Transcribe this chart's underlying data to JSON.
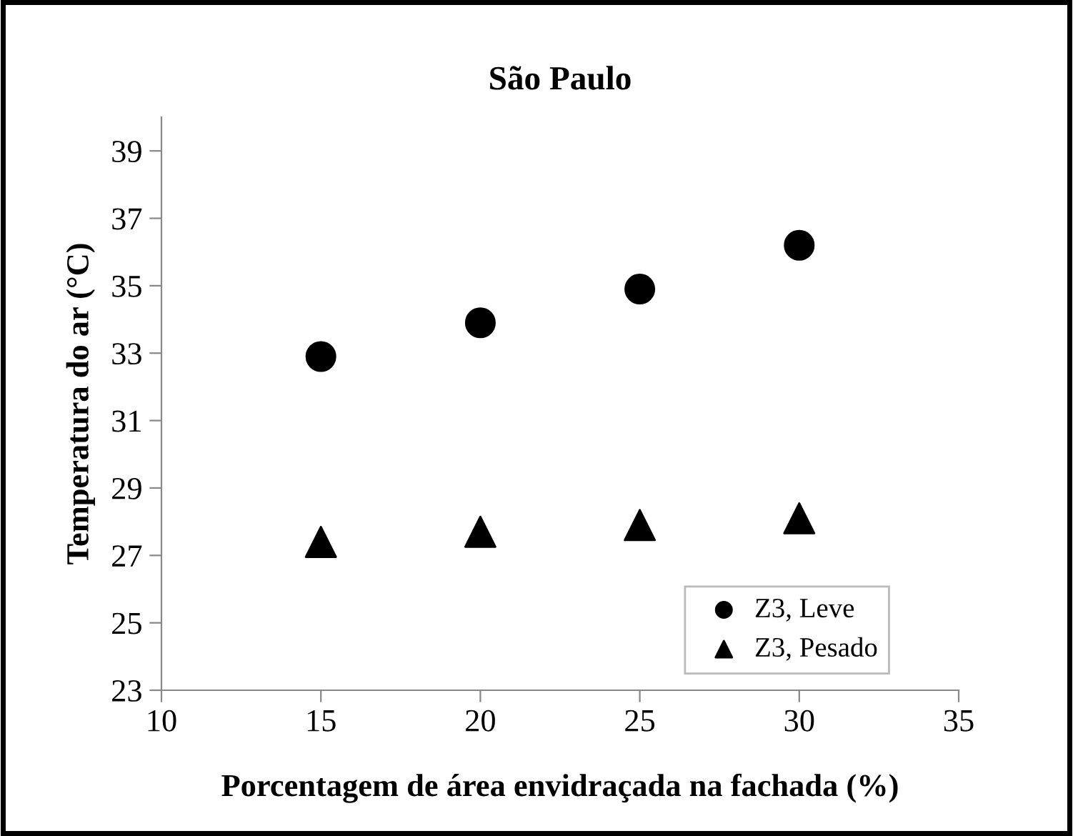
{
  "chart_data": {
    "type": "scatter",
    "title": "São Paulo",
    "xlabel": "Porcentagem de área envidraçada na fachada (%)",
    "ylabel": "Temperatura do ar (°C)",
    "x": [
      15,
      20,
      25,
      30
    ],
    "series": [
      {
        "name": "Z3, Leve",
        "color": "#000000",
        "marker": "circle",
        "values": [
          32.9,
          33.9,
          34.9,
          36.2
        ]
      },
      {
        "name": "Z3, Pesado",
        "color": "#000000",
        "marker": "triangle",
        "values": [
          27.4,
          27.7,
          27.9,
          28.1
        ]
      }
    ],
    "xlim": [
      10,
      35
    ],
    "xticks": [
      10,
      15,
      20,
      25,
      30,
      35
    ],
    "ylim": [
      23,
      40
    ],
    "yticks": [
      23,
      25,
      27,
      29,
      31,
      33,
      35,
      37,
      39
    ],
    "grid": false,
    "legend": "bottom right"
  }
}
